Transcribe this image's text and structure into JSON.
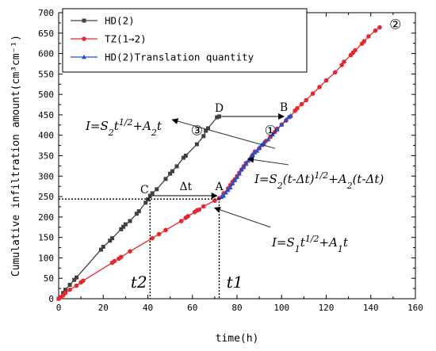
{
  "chart_data": {
    "type": "line",
    "xlabel": "time(h)",
    "ylabel": "Cumulative infiltration amount(cm³cm⁻¹)",
    "xlim": [
      0,
      160
    ],
    "ylim": [
      0,
      700
    ],
    "x_ticks": [
      "0",
      "20",
      "40",
      "60",
      "80",
      "100",
      "120",
      "140",
      "160"
    ],
    "y_ticks": [
      "0",
      "50",
      "100",
      "150",
      "200",
      "250",
      "300",
      "350",
      "400",
      "450",
      "500",
      "550",
      "600",
      "650",
      "700"
    ],
    "legend_position": "top-left",
    "series": [
      {
        "name": "HD(2)",
        "color": "#404040",
        "marker": "square",
        "points": [
          [
            0,
            0
          ],
          [
            2,
            14
          ],
          [
            3,
            22
          ],
          [
            5,
            34
          ],
          [
            7,
            46
          ],
          [
            8,
            52
          ],
          [
            19,
            120
          ],
          [
            20,
            127
          ],
          [
            23,
            142
          ],
          [
            24,
            148
          ],
          [
            28,
            170
          ],
          [
            29,
            176
          ],
          [
            30,
            182
          ],
          [
            32,
            190
          ],
          [
            35,
            208
          ],
          [
            36,
            214
          ],
          [
            39,
            235
          ],
          [
            40,
            243
          ],
          [
            41,
            252
          ],
          [
            42,
            258
          ],
          [
            44,
            268
          ],
          [
            48,
            293
          ],
          [
            50,
            306
          ],
          [
            51,
            312
          ],
          [
            53,
            324
          ],
          [
            56,
            345
          ],
          [
            57,
            350
          ],
          [
            62,
            378
          ],
          [
            65,
            398
          ],
          [
            66,
            411
          ],
          [
            67,
            417
          ],
          [
            71,
            444
          ],
          [
            72,
            446
          ]
        ]
      },
      {
        "name": "TZ(1→2)",
        "color": "#e8262b",
        "marker": "circle",
        "points": [
          [
            0,
            0
          ],
          [
            1,
            4
          ],
          [
            2,
            8
          ],
          [
            3,
            14
          ],
          [
            5,
            22
          ],
          [
            8,
            32
          ],
          [
            10,
            40
          ],
          [
            11,
            44
          ],
          [
            24,
            88
          ],
          [
            25,
            92
          ],
          [
            27,
            98
          ],
          [
            28,
            102
          ],
          [
            32,
            116
          ],
          [
            42,
            148
          ],
          [
            45,
            158
          ],
          [
            48,
            168
          ],
          [
            55,
            190
          ],
          [
            57,
            198
          ],
          [
            58,
            202
          ],
          [
            61,
            212
          ],
          [
            62,
            216
          ],
          [
            63,
            218
          ],
          [
            65,
            226
          ],
          [
            70,
            240
          ],
          [
            72,
            246
          ],
          [
            74,
            258
          ],
          [
            76,
            270
          ],
          [
            77,
            278
          ],
          [
            78,
            286
          ],
          [
            79,
            292
          ],
          [
            80,
            300
          ],
          [
            81,
            308
          ],
          [
            82,
            316
          ],
          [
            83,
            324
          ],
          [
            84,
            332
          ],
          [
            86,
            342
          ],
          [
            87,
            352
          ],
          [
            88,
            360
          ],
          [
            90,
            368
          ],
          [
            92,
            378
          ],
          [
            93,
            386
          ],
          [
            95,
            396
          ],
          [
            97,
            408
          ],
          [
            98,
            416
          ],
          [
            100,
            426
          ],
          [
            102,
            436
          ],
          [
            104,
            446
          ],
          [
            106,
            460
          ],
          [
            107,
            466
          ],
          [
            109,
            476
          ],
          [
            111,
            486
          ],
          [
            114,
            502
          ],
          [
            117,
            518
          ],
          [
            120,
            534
          ],
          [
            124,
            554
          ],
          [
            127,
            572
          ],
          [
            128,
            580
          ],
          [
            131,
            596
          ],
          [
            132,
            602
          ],
          [
            133,
            608
          ],
          [
            136,
            624
          ],
          [
            137,
            630
          ],
          [
            139,
            642
          ],
          [
            142,
            656
          ],
          [
            144,
            664
          ]
        ]
      },
      {
        "name": "HD(2)Translation quantity",
        "color": "#1f4fd8",
        "marker": "triangle",
        "points": [
          [
            73,
            249
          ],
          [
            74,
            252
          ],
          [
            75,
            260
          ],
          [
            76,
            266
          ],
          [
            77,
            272
          ],
          [
            78,
            282
          ],
          [
            79,
            290
          ],
          [
            80,
            298
          ],
          [
            81,
            306
          ],
          [
            82,
            316
          ],
          [
            83,
            322
          ],
          [
            84,
            330
          ],
          [
            85,
            338
          ],
          [
            86,
            346
          ],
          [
            87,
            352
          ],
          [
            88,
            358
          ],
          [
            89,
            362
          ],
          [
            90,
            370
          ],
          [
            91,
            376
          ],
          [
            92,
            382
          ],
          [
            94,
            390
          ],
          [
            96,
            402
          ],
          [
            98,
            414
          ],
          [
            100,
            426
          ],
          [
            102,
            438
          ],
          [
            103,
            444
          ],
          [
            104,
            448
          ]
        ]
      }
    ],
    "annotations": {
      "label_c": "C",
      "label_a": "A",
      "label_d": "D",
      "label_b": "B",
      "delta_t": "Δt",
      "t2": "t2",
      "t1": "t1",
      "circle_1": "①",
      "circle_2": "②",
      "circle_3": "③",
      "eq_hd": "I=S2t1/2+A2t",
      "eq_translated": "I=S2(t-Δt)1/2+A2(t-Δt)",
      "eq_tz": "I=S1t1/2+A1t"
    }
  }
}
